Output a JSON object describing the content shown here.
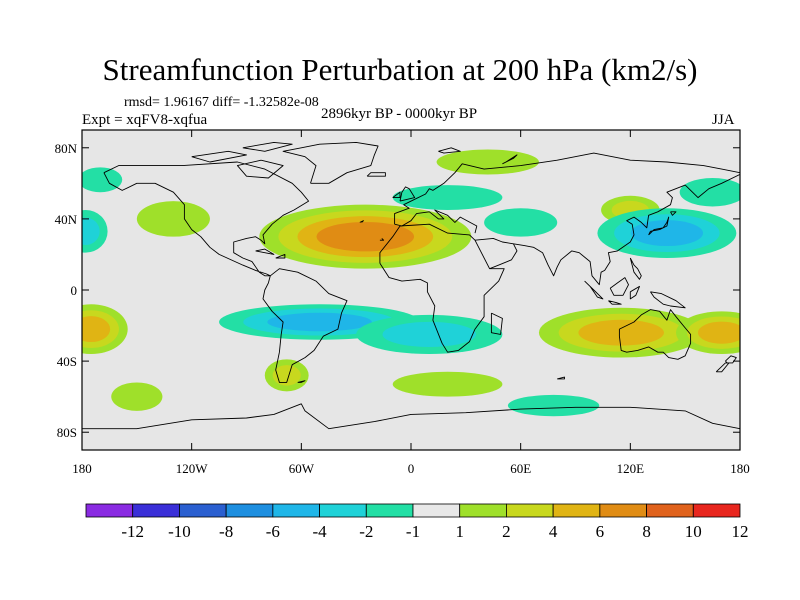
{
  "title": "Streamfunction Perturbation at 200 hPa (km2/s)",
  "stats_line": "rmsd= 1.96167 diff= -1.32582e-08",
  "experiment": "Expt = xqFV8-xqfua",
  "period": "2896kyr BP - 0000kyr BP",
  "season": "JJA",
  "lat_ticks": [
    {
      "lat": 80,
      "label": "80N"
    },
    {
      "lat": 40,
      "label": "40N"
    },
    {
      "lat": 0,
      "label": "0"
    },
    {
      "lat": -40,
      "label": "40S"
    },
    {
      "lat": -80,
      "label": "80S"
    }
  ],
  "lon_ticks": [
    {
      "lon": -180,
      "label": "180"
    },
    {
      "lon": -120,
      "label": "120W"
    },
    {
      "lon": -60,
      "label": "60W"
    },
    {
      "lon": 0,
      "label": "0"
    },
    {
      "lon": 60,
      "label": "60E"
    },
    {
      "lon": 120,
      "label": "120E"
    },
    {
      "lon": 180,
      "label": "180"
    }
  ],
  "colorbar": {
    "colors": [
      "#8a2be2",
      "#3a2fd8",
      "#2a5fd0",
      "#1e8fe0",
      "#1fb6e8",
      "#1fd2d8",
      "#23dfa5",
      "#e8e8e8",
      "#9fe02a",
      "#c8d81e",
      "#e0b414",
      "#e08c14",
      "#e0621c",
      "#e8261e"
    ],
    "labels": [
      "-12",
      "-10",
      "-8",
      "-6",
      "-4",
      "-2",
      "-1",
      "1",
      "2",
      "4",
      "6",
      "8",
      "10",
      "12"
    ]
  },
  "map_colors": {
    "background": "#e6e6e6",
    "neg1": "#23dfa5",
    "neg2": "#1fd2d8",
    "neg3": "#1fb6e8",
    "pos1": "#9fe02a",
    "pos2": "#c8d81e",
    "pos3": "#e0b414",
    "pos4": "#e08c14"
  },
  "anomalies": [
    {
      "lon": -25,
      "lat": 30,
      "rx": 58,
      "ry": 18,
      "levels": [
        1,
        2,
        3,
        4
      ]
    },
    {
      "lon": -175,
      "lat": -22,
      "rx": 20,
      "ry": 14,
      "levels": [
        1,
        2,
        3
      ]
    },
    {
      "lon": 115,
      "lat": -24,
      "rx": 45,
      "ry": 14,
      "levels": [
        1,
        2,
        3
      ]
    },
    {
      "lon": 170,
      "lat": -24,
      "rx": 25,
      "ry": 12,
      "levels": [
        1,
        2,
        3
      ]
    },
    {
      "lon": -130,
      "lat": 40,
      "rx": 20,
      "ry": 10,
      "levels": [
        1
      ]
    },
    {
      "lon": -150,
      "lat": -60,
      "rx": 14,
      "ry": 8,
      "levels": [
        1
      ]
    },
    {
      "lon": -68,
      "lat": -48,
      "rx": 12,
      "ry": 9,
      "levels": [
        1,
        2
      ]
    },
    {
      "lon": 20,
      "lat": -53,
      "rx": 30,
      "ry": 7,
      "levels": [
        1
      ]
    },
    {
      "lon": 42,
      "lat": 72,
      "rx": 28,
      "ry": 7,
      "levels": [
        1
      ]
    },
    {
      "lon": 120,
      "lat": 45,
      "rx": 16,
      "ry": 8,
      "levels": [
        1,
        2
      ]
    },
    {
      "lon": -50,
      "lat": -18,
      "rx": 55,
      "ry": 10,
      "levels": [
        -1,
        -2,
        -3
      ]
    },
    {
      "lon": 10,
      "lat": -25,
      "rx": 40,
      "ry": 11,
      "levels": [
        -1,
        -2
      ]
    },
    {
      "lon": 140,
      "lat": 32,
      "rx": 38,
      "ry": 14,
      "levels": [
        -1,
        -2,
        -3
      ]
    },
    {
      "lon": -178,
      "lat": 33,
      "rx": 12,
      "ry": 12,
      "levels": [
        -1,
        -2
      ]
    },
    {
      "lon": 20,
      "lat": 52,
      "rx": 30,
      "ry": 7,
      "levels": [
        -1
      ]
    },
    {
      "lon": 60,
      "lat": 38,
      "rx": 20,
      "ry": 8,
      "levels": [
        -1
      ]
    },
    {
      "lon": 78,
      "lat": -65,
      "rx": 25,
      "ry": 6,
      "levels": [
        -1
      ]
    },
    {
      "lon": -170,
      "lat": 62,
      "rx": 12,
      "ry": 7,
      "levels": [
        -1
      ]
    },
    {
      "lon": 165,
      "lat": 55,
      "rx": 18,
      "ry": 8,
      "levels": [
        -1
      ]
    }
  ]
}
